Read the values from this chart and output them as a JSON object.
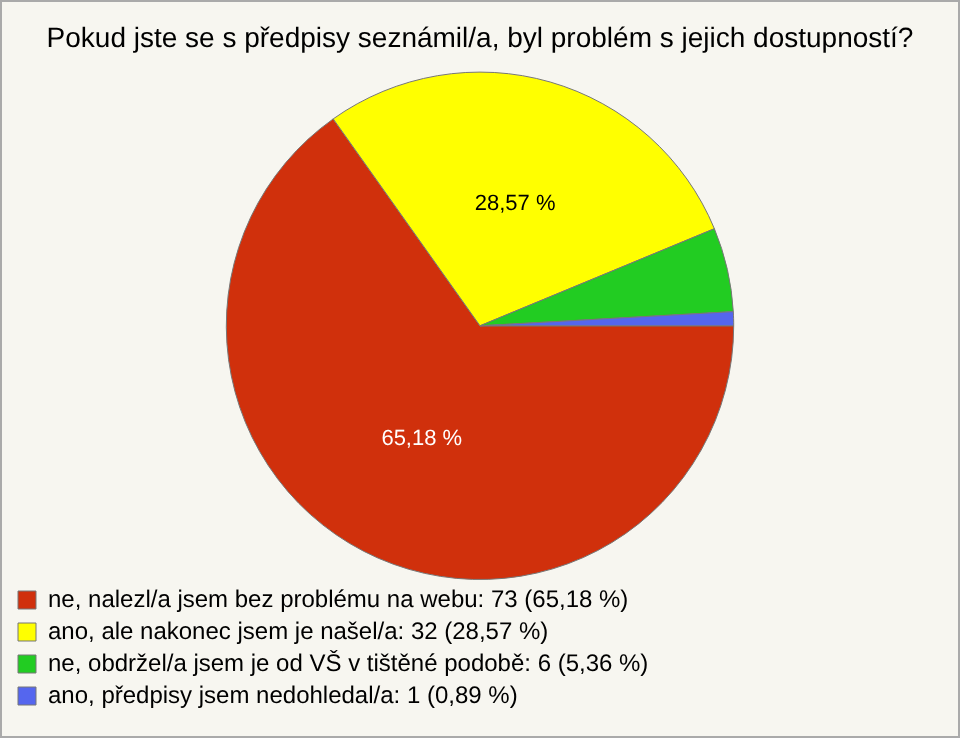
{
  "chart_data": {
    "type": "pie",
    "title": "Pokud jste se s předpisy seznámil/a, byl problém s jejich dostupností?",
    "categories": [
      "ne, nalezl/a jsem bez problému na webu: 73 (65,18 %)",
      "ano, ale nakonec jsem je našel/a: 32 (28,57 %)",
      "ne, obdržel/a jsem je od VŠ v tištěné podobě: 6 (5,36 %)",
      "ano, předpisy jsem nedohledal/a: 1 (0,89 %)"
    ],
    "values": [
      65.18,
      28.57,
      5.36,
      0.89
    ],
    "colors": [
      "#d0300c",
      "#ffff00",
      "#22cc22",
      "#5566ee"
    ],
    "value_labels": [
      "65,18 %",
      "28,57 %",
      null,
      null
    ],
    "legend": "bottom left"
  }
}
